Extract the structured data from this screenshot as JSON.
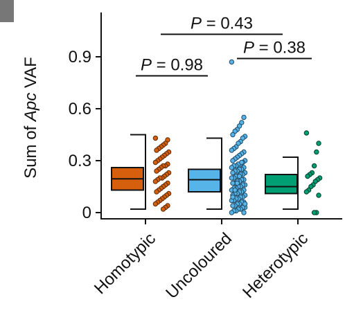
{
  "panel_tab_color": "#777777",
  "chart_data": {
    "type": "box",
    "ylabel": "Sum of Apc VAF",
    "ylabel_parts": {
      "pre": "Sum of ",
      "italic": "Apc",
      "post": " VAF"
    },
    "ylim": [
      -0.04,
      1.13
    ],
    "yticks": [
      0,
      0.3,
      0.6,
      0.9
    ],
    "ytick_labels": [
      "0",
      "0.3",
      "0.6",
      "0.9"
    ],
    "categories": [
      "Homotypic",
      "Uncoloured",
      "Heterotypic"
    ],
    "series": [
      {
        "colors": {
          "fill": "#D65F0E",
          "stroke": "#5a2a08"
        },
        "box": {
          "q1": 0.13,
          "median": 0.195,
          "q3": 0.26,
          "whisker_low": 0.02,
          "whisker_high": 0.45
        },
        "points": [
          0.43,
          0.42,
          0.4,
          0.39,
          0.38,
          0.37,
          0.36,
          0.35,
          0.34,
          0.33,
          0.32,
          0.31,
          0.3,
          0.29,
          0.28,
          0.27,
          0.27,
          0.26,
          0.25,
          0.24,
          0.23,
          0.22,
          0.21,
          0.2,
          0.2,
          0.19,
          0.18,
          0.17,
          0.16,
          0.15,
          0.14,
          0.13,
          0.12,
          0.11,
          0.1,
          0.09,
          0.08,
          0.07,
          0.06,
          0.05,
          0.04,
          0.03,
          0.02
        ]
      },
      {
        "colors": {
          "fill": "#56B4E9",
          "stroke": "#1f4a66"
        },
        "box": {
          "q1": 0.12,
          "median": 0.19,
          "q3": 0.25,
          "whisker_low": 0.02,
          "whisker_high": 0.43
        },
        "points": [
          0.87,
          0.55,
          0.52,
          0.5,
          0.48,
          0.47,
          0.45,
          0.44,
          0.43,
          0.41,
          0.4,
          0.38,
          0.37,
          0.36,
          0.35,
          0.34,
          0.33,
          0.32,
          0.31,
          0.3,
          0.3,
          0.29,
          0.28,
          0.28,
          0.27,
          0.27,
          0.26,
          0.26,
          0.25,
          0.25,
          0.24,
          0.24,
          0.23,
          0.23,
          0.22,
          0.22,
          0.21,
          0.21,
          0.2,
          0.2,
          0.19,
          0.19,
          0.18,
          0.18,
          0.17,
          0.17,
          0.16,
          0.16,
          0.15,
          0.15,
          0.14,
          0.14,
          0.13,
          0.13,
          0.12,
          0.12,
          0.11,
          0.11,
          0.1,
          0.1,
          0.09,
          0.09,
          0.08,
          0.08,
          0.07,
          0.07,
          0.06,
          0.06,
          0.05,
          0.05,
          0.04,
          0.04,
          0.03,
          0.03,
          0.02,
          0.02,
          0.01,
          0.01,
          0.0,
          0.0,
          0.29,
          0.21,
          0.17,
          0.13,
          0.09,
          0.05
        ]
      },
      {
        "colors": {
          "fill": "#009E73",
          "stroke": "#003d2c"
        },
        "box": {
          "q1": 0.11,
          "median": 0.15,
          "q3": 0.22,
          "whisker_low": 0.02,
          "whisker_high": 0.32
        },
        "points": [
          0.46,
          0.4,
          0.35,
          0.27,
          0.23,
          0.22,
          0.21,
          0.2,
          0.19,
          0.18,
          0.16,
          0.15,
          0.13,
          0.12,
          0.1,
          0.0,
          0.0
        ]
      }
    ],
    "comparisons": [
      {
        "label_prefix": "P",
        "label_rest": " = 0.98",
        "from": 0,
        "to": 1,
        "y": 0.79
      },
      {
        "label_prefix": "P",
        "label_rest": " = 0.43",
        "from": 0,
        "to": 2,
        "y": 1.03
      },
      {
        "label_prefix": "P",
        "label_rest": " = 0.38",
        "from": 1,
        "to": 2,
        "y": 0.89
      }
    ],
    "grid": false,
    "legend": "none"
  }
}
